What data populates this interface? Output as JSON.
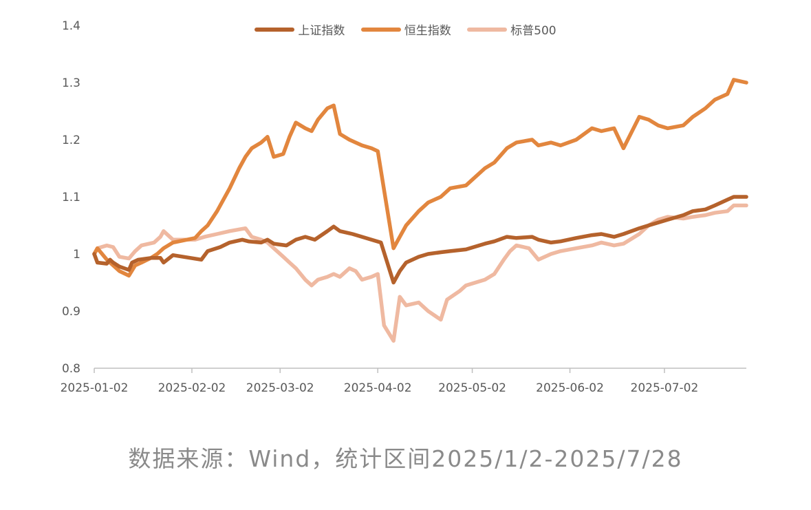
{
  "chart_data": {
    "type": "line",
    "ylim": [
      0.8,
      1.4
    ],
    "yticks": [
      "0.8",
      "0.9",
      "1",
      "1.1",
      "1.2",
      "1.3",
      "1.4"
    ],
    "xticks": [
      "2025-01-02",
      "2025-02-02",
      "2025-03-02",
      "2025-04-02",
      "2025-05-02",
      "2025-06-02",
      "2025-07-02"
    ],
    "xlim": [
      "2025-01-02",
      "2025-07-28"
    ],
    "legend_position": "top",
    "series": [
      {
        "name": "上证指数",
        "color": "#b5622c",
        "points": [
          [
            "2025-01-02",
            1.0
          ],
          [
            "2025-01-03",
            0.985
          ],
          [
            "2025-01-06",
            0.983
          ],
          [
            "2025-01-07",
            0.99
          ],
          [
            "2025-01-08",
            0.985
          ],
          [
            "2025-01-10",
            0.978
          ],
          [
            "2025-01-13",
            0.972
          ],
          [
            "2025-01-14",
            0.985
          ],
          [
            "2025-01-16",
            0.99
          ],
          [
            "2025-01-20",
            0.993
          ],
          [
            "2025-01-23",
            0.993
          ],
          [
            "2025-01-24",
            0.985
          ],
          [
            "2025-01-27",
            0.998
          ],
          [
            "2025-02-05",
            0.99
          ],
          [
            "2025-02-07",
            1.005
          ],
          [
            "2025-02-11",
            1.012
          ],
          [
            "2025-02-14",
            1.02
          ],
          [
            "2025-02-18",
            1.025
          ],
          [
            "2025-02-20",
            1.022
          ],
          [
            "2025-02-24",
            1.02
          ],
          [
            "2025-02-26",
            1.025
          ],
          [
            "2025-02-28",
            1.018
          ],
          [
            "2025-03-04",
            1.015
          ],
          [
            "2025-03-07",
            1.025
          ],
          [
            "2025-03-10",
            1.03
          ],
          [
            "2025-03-13",
            1.025
          ],
          [
            "2025-03-17",
            1.04
          ],
          [
            "2025-03-19",
            1.048
          ],
          [
            "2025-03-21",
            1.04
          ],
          [
            "2025-03-25",
            1.035
          ],
          [
            "2025-03-28",
            1.03
          ],
          [
            "2025-03-31",
            1.025
          ],
          [
            "2025-04-03",
            1.02
          ],
          [
            "2025-04-07",
            0.95
          ],
          [
            "2025-04-09",
            0.97
          ],
          [
            "2025-04-11",
            0.985
          ],
          [
            "2025-04-15",
            0.995
          ],
          [
            "2025-04-18",
            1.0
          ],
          [
            "2025-04-22",
            1.003
          ],
          [
            "2025-04-25",
            1.005
          ],
          [
            "2025-04-30",
            1.008
          ],
          [
            "2025-05-06",
            1.018
          ],
          [
            "2025-05-09",
            1.022
          ],
          [
            "2025-05-13",
            1.03
          ],
          [
            "2025-05-16",
            1.028
          ],
          [
            "2025-05-21",
            1.03
          ],
          [
            "2025-05-23",
            1.025
          ],
          [
            "2025-05-27",
            1.02
          ],
          [
            "2025-05-30",
            1.022
          ],
          [
            "2025-06-04",
            1.028
          ],
          [
            "2025-06-09",
            1.033
          ],
          [
            "2025-06-12",
            1.035
          ],
          [
            "2025-06-16",
            1.03
          ],
          [
            "2025-06-19",
            1.035
          ],
          [
            "2025-06-24",
            1.045
          ],
          [
            "2025-06-27",
            1.05
          ],
          [
            "2025-06-30",
            1.055
          ],
          [
            "2025-07-03",
            1.06
          ],
          [
            "2025-07-08",
            1.068
          ],
          [
            "2025-07-11",
            1.075
          ],
          [
            "2025-07-15",
            1.078
          ],
          [
            "2025-07-18",
            1.085
          ],
          [
            "2025-07-22",
            1.095
          ],
          [
            "2025-07-24",
            1.1
          ],
          [
            "2025-07-28",
            1.1
          ]
        ]
      },
      {
        "name": "恒生指数",
        "color": "#e2863e",
        "points": [
          [
            "2025-01-02",
            1.0
          ],
          [
            "2025-01-03",
            1.01
          ],
          [
            "2025-01-06",
            0.99
          ],
          [
            "2025-01-08",
            0.98
          ],
          [
            "2025-01-10",
            0.97
          ],
          [
            "2025-01-13",
            0.962
          ],
          [
            "2025-01-15",
            0.98
          ],
          [
            "2025-01-17",
            0.985
          ],
          [
            "2025-01-20",
            0.993
          ],
          [
            "2025-01-22",
            1.0
          ],
          [
            "2025-01-24",
            1.01
          ],
          [
            "2025-01-27",
            1.02
          ],
          [
            "2025-02-03",
            1.028
          ],
          [
            "2025-02-05",
            1.04
          ],
          [
            "2025-02-07",
            1.05
          ],
          [
            "2025-02-10",
            1.075
          ],
          [
            "2025-02-12",
            1.095
          ],
          [
            "2025-02-14",
            1.115
          ],
          [
            "2025-02-17",
            1.15
          ],
          [
            "2025-02-19",
            1.17
          ],
          [
            "2025-02-21",
            1.185
          ],
          [
            "2025-02-24",
            1.195
          ],
          [
            "2025-02-26",
            1.205
          ],
          [
            "2025-02-28",
            1.17
          ],
          [
            "2025-03-03",
            1.175
          ],
          [
            "2025-03-05",
            1.205
          ],
          [
            "2025-03-07",
            1.23
          ],
          [
            "2025-03-10",
            1.22
          ],
          [
            "2025-03-12",
            1.215
          ],
          [
            "2025-03-14",
            1.235
          ],
          [
            "2025-03-17",
            1.255
          ],
          [
            "2025-03-19",
            1.26
          ],
          [
            "2025-03-21",
            1.21
          ],
          [
            "2025-03-24",
            1.2
          ],
          [
            "2025-03-26",
            1.195
          ],
          [
            "2025-03-28",
            1.19
          ],
          [
            "2025-03-31",
            1.185
          ],
          [
            "2025-04-02",
            1.18
          ],
          [
            "2025-04-07",
            1.01
          ],
          [
            "2025-04-09",
            1.03
          ],
          [
            "2025-04-11",
            1.05
          ],
          [
            "2025-04-15",
            1.075
          ],
          [
            "2025-04-18",
            1.09
          ],
          [
            "2025-04-22",
            1.1
          ],
          [
            "2025-04-25",
            1.115
          ],
          [
            "2025-04-30",
            1.12
          ],
          [
            "2025-05-06",
            1.15
          ],
          [
            "2025-05-09",
            1.16
          ],
          [
            "2025-05-13",
            1.185
          ],
          [
            "2025-05-16",
            1.195
          ],
          [
            "2025-05-21",
            1.2
          ],
          [
            "2025-05-23",
            1.19
          ],
          [
            "2025-05-27",
            1.195
          ],
          [
            "2025-05-30",
            1.19
          ],
          [
            "2025-06-04",
            1.2
          ],
          [
            "2025-06-09",
            1.22
          ],
          [
            "2025-06-12",
            1.215
          ],
          [
            "2025-06-16",
            1.22
          ],
          [
            "2025-06-19",
            1.185
          ],
          [
            "2025-06-24",
            1.24
          ],
          [
            "2025-06-27",
            1.235
          ],
          [
            "2025-06-30",
            1.225
          ],
          [
            "2025-07-03",
            1.22
          ],
          [
            "2025-07-08",
            1.225
          ],
          [
            "2025-07-11",
            1.24
          ],
          [
            "2025-07-15",
            1.255
          ],
          [
            "2025-07-18",
            1.27
          ],
          [
            "2025-07-22",
            1.28
          ],
          [
            "2025-07-24",
            1.305
          ],
          [
            "2025-07-28",
            1.3
          ]
        ]
      },
      {
        "name": "标普500",
        "color": "#efb9a1",
        "points": [
          [
            "2025-01-02",
            1.0
          ],
          [
            "2025-01-03",
            1.01
          ],
          [
            "2025-01-06",
            1.015
          ],
          [
            "2025-01-08",
            1.012
          ],
          [
            "2025-01-10",
            0.995
          ],
          [
            "2025-01-13",
            0.992
          ],
          [
            "2025-01-15",
            1.005
          ],
          [
            "2025-01-17",
            1.015
          ],
          [
            "2025-01-21",
            1.02
          ],
          [
            "2025-01-23",
            1.03
          ],
          [
            "2025-01-24",
            1.04
          ],
          [
            "2025-01-27",
            1.025
          ],
          [
            "2025-02-03",
            1.025
          ],
          [
            "2025-02-06",
            1.03
          ],
          [
            "2025-02-10",
            1.035
          ],
          [
            "2025-02-14",
            1.04
          ],
          [
            "2025-02-19",
            1.045
          ],
          [
            "2025-02-21",
            1.03
          ],
          [
            "2025-02-24",
            1.025
          ],
          [
            "2025-02-26",
            1.02
          ],
          [
            "2025-02-28",
            1.01
          ],
          [
            "2025-03-03",
            0.995
          ],
          [
            "2025-03-05",
            0.985
          ],
          [
            "2025-03-07",
            0.975
          ],
          [
            "2025-03-10",
            0.955
          ],
          [
            "2025-03-12",
            0.945
          ],
          [
            "2025-03-14",
            0.955
          ],
          [
            "2025-03-17",
            0.96
          ],
          [
            "2025-03-19",
            0.965
          ],
          [
            "2025-03-21",
            0.96
          ],
          [
            "2025-03-24",
            0.975
          ],
          [
            "2025-03-26",
            0.97
          ],
          [
            "2025-03-28",
            0.955
          ],
          [
            "2025-03-31",
            0.96
          ],
          [
            "2025-04-02",
            0.965
          ],
          [
            "2025-04-03",
            0.92
          ],
          [
            "2025-04-04",
            0.875
          ],
          [
            "2025-04-07",
            0.848
          ],
          [
            "2025-04-09",
            0.925
          ],
          [
            "2025-04-11",
            0.91
          ],
          [
            "2025-04-15",
            0.915
          ],
          [
            "2025-04-18",
            0.9
          ],
          [
            "2025-04-22",
            0.885
          ],
          [
            "2025-04-24",
            0.92
          ],
          [
            "2025-04-28",
            0.935
          ],
          [
            "2025-04-30",
            0.945
          ],
          [
            "2025-05-06",
            0.955
          ],
          [
            "2025-05-09",
            0.965
          ],
          [
            "2025-05-12",
            0.99
          ],
          [
            "2025-05-14",
            1.005
          ],
          [
            "2025-05-16",
            1.015
          ],
          [
            "2025-05-20",
            1.01
          ],
          [
            "2025-05-23",
            0.99
          ],
          [
            "2025-05-27",
            1.0
          ],
          [
            "2025-05-30",
            1.005
          ],
          [
            "2025-06-04",
            1.01
          ],
          [
            "2025-06-09",
            1.015
          ],
          [
            "2025-06-12",
            1.02
          ],
          [
            "2025-06-16",
            1.015
          ],
          [
            "2025-06-19",
            1.018
          ],
          [
            "2025-06-24",
            1.035
          ],
          [
            "2025-06-27",
            1.05
          ],
          [
            "2025-06-30",
            1.06
          ],
          [
            "2025-07-03",
            1.065
          ],
          [
            "2025-07-08",
            1.062
          ],
          [
            "2025-07-11",
            1.065
          ],
          [
            "2025-07-15",
            1.068
          ],
          [
            "2025-07-18",
            1.072
          ],
          [
            "2025-07-22",
            1.075
          ],
          [
            "2025-07-24",
            1.085
          ],
          [
            "2025-07-28",
            1.085
          ]
        ]
      }
    ]
  },
  "source_note": "数据来源：Wind，统计区间2025/1/2-2025/7/28"
}
